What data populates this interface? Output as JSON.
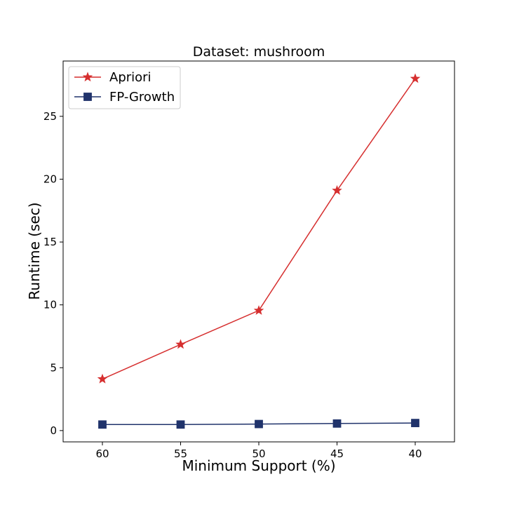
{
  "chart_data": {
    "type": "line",
    "title": "Dataset: mushroom",
    "xlabel": "Minimum Support (%)",
    "ylabel": "Runtime (sec)",
    "categories": [
      "60",
      "55",
      "50",
      "45",
      "40"
    ],
    "ylim": [
      -0.9,
      29.4
    ],
    "yticks": [
      "0",
      "5",
      "10",
      "15",
      "20",
      "25"
    ],
    "grid": false,
    "legend_position": "top-left",
    "series": [
      {
        "name": "Apriori",
        "values": [
          4.1,
          6.85,
          9.55,
          19.1,
          28.0
        ],
        "color": "#d62f2f",
        "marker": "star"
      },
      {
        "name": "FP-Growth",
        "values": [
          0.48,
          0.48,
          0.52,
          0.56,
          0.6
        ],
        "color": "#20336b",
        "marker": "square"
      }
    ]
  }
}
